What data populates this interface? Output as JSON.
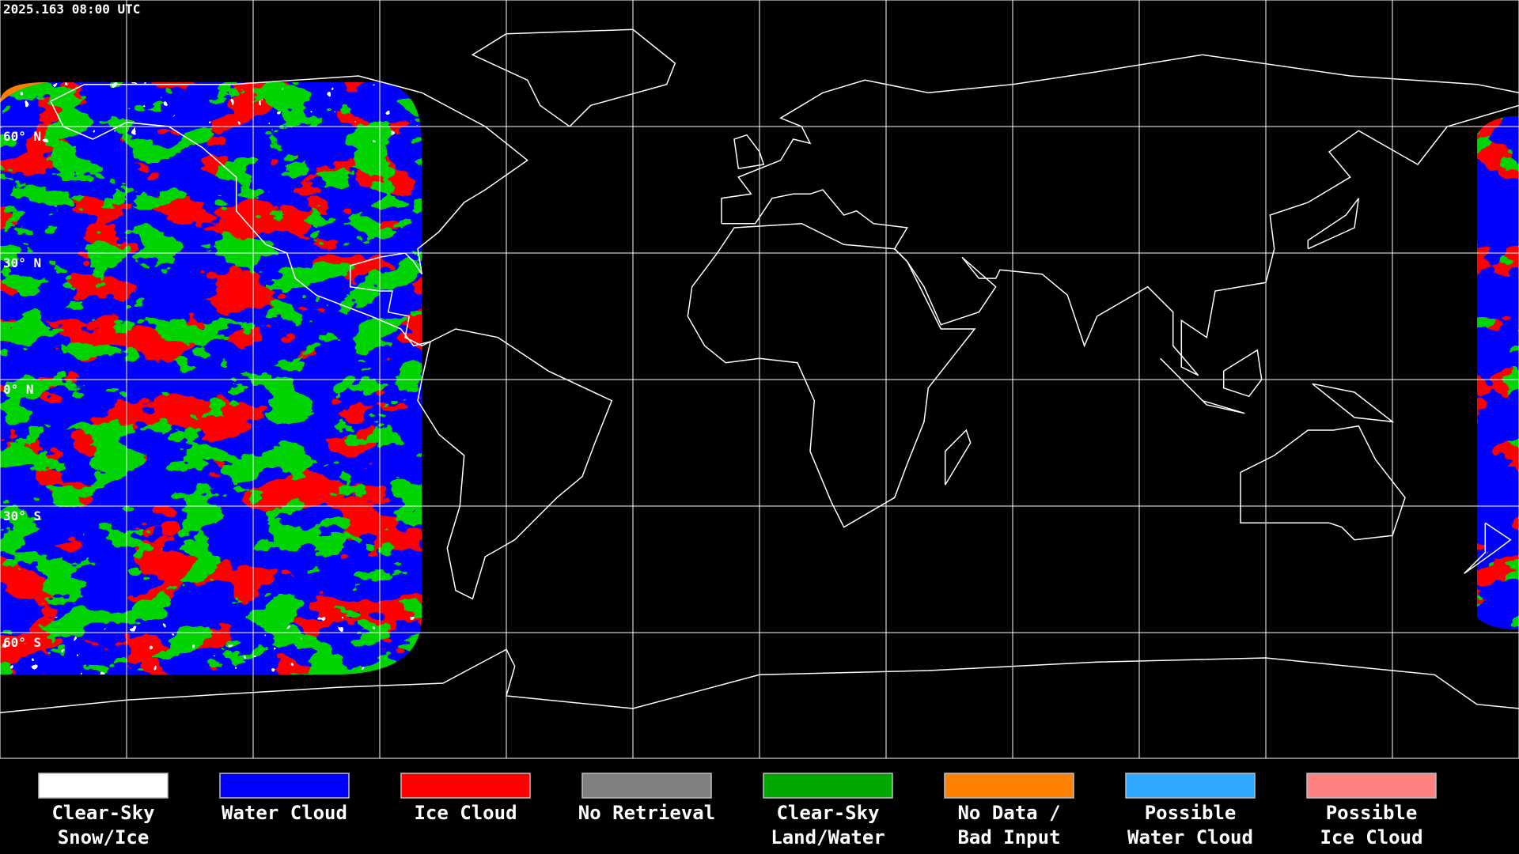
{
  "timestamp": "2025.163 08:00 UTC",
  "latitude_labels": [
    "60° N",
    "30° N",
    "0° N",
    "30° S",
    "60° S"
  ],
  "legend": [
    {
      "lines": [
        "Clear-Sky",
        "Snow/Ice"
      ],
      "color": "#ffffff"
    },
    {
      "lines": [
        "Water Cloud"
      ],
      "color": "#0000ff"
    },
    {
      "lines": [
        "Ice Cloud"
      ],
      "color": "#ff0000"
    },
    {
      "lines": [
        "No Retrieval"
      ],
      "color": "#808080"
    },
    {
      "lines": [
        "Clear-Sky",
        "Land/Water"
      ],
      "color": "#00a800"
    },
    {
      "lines": [
        "No Data /",
        "Bad Input"
      ],
      "color": "#ff8000"
    },
    {
      "lines": [
        "Possible",
        "Water Cloud"
      ],
      "color": "#30a8ff"
    },
    {
      "lines": [
        "Possible",
        "Ice Cloud"
      ],
      "color": "#ff8080"
    }
  ]
}
